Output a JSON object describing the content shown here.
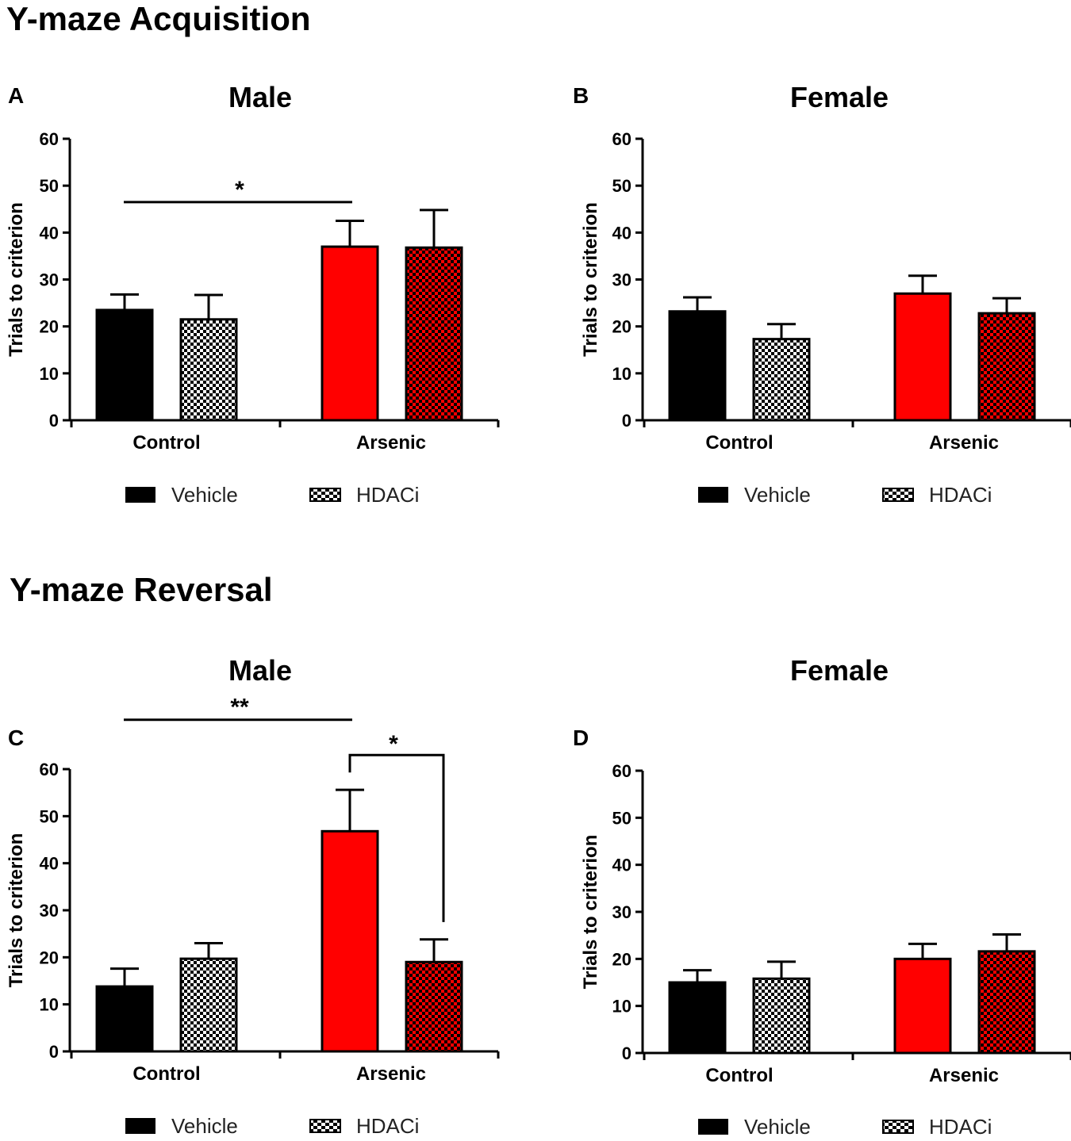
{
  "section_titles": [
    "Y-maze Acquisition",
    "Y-maze Reversal"
  ],
  "legend": {
    "vehicle": "Vehicle",
    "hdaci": "HDACi"
  },
  "colors": {
    "black": "#000000",
    "red": "#ff0000",
    "white": "#ffffff",
    "checker_dark_red": "#8b0000"
  },
  "chart_data": [
    {
      "type": "bar",
      "panel": "A",
      "title": "Male",
      "section": "Y-maze Acquisition",
      "ylabel": "Trials to criterion",
      "xlabel": "",
      "ylim": [
        0,
        60
      ],
      "yticks": [
        0,
        10,
        20,
        30,
        40,
        50,
        60
      ],
      "categories": [
        "Control",
        "Arsenic"
      ],
      "series": [
        {
          "name": "Vehicle",
          "values": [
            23.5,
            37.0
          ],
          "errors": [
            3.3,
            5.5
          ]
        },
        {
          "name": "HDACi",
          "values": [
            21.5,
            36.8
          ],
          "errors": [
            5.2,
            8.0
          ]
        }
      ],
      "annotations": [
        {
          "text": "*",
          "from": "Control-Vehicle",
          "to": "Arsenic-Vehicle",
          "y": 46.5
        }
      ]
    },
    {
      "type": "bar",
      "panel": "B",
      "title": "Female",
      "section": "Y-maze Acquisition",
      "ylabel": "Trials to criterion",
      "xlabel": "",
      "ylim": [
        0,
        60
      ],
      "yticks": [
        0,
        10,
        20,
        30,
        40,
        50,
        60
      ],
      "categories": [
        "Control",
        "Arsenic"
      ],
      "series": [
        {
          "name": "Vehicle",
          "values": [
            23.2,
            27.0
          ],
          "errors": [
            3.0,
            3.8
          ]
        },
        {
          "name": "HDACi",
          "values": [
            17.3,
            22.8
          ],
          "errors": [
            3.2,
            3.2
          ]
        }
      ],
      "annotations": []
    },
    {
      "type": "bar",
      "panel": "C",
      "title": "Male",
      "section": "Y-maze Reversal",
      "ylabel": "Trials to criterion",
      "xlabel": "",
      "ylim": [
        0,
        60
      ],
      "yticks": [
        0,
        10,
        20,
        30,
        40,
        50,
        60
      ],
      "categories": [
        "Control",
        "Arsenic"
      ],
      "series": [
        {
          "name": "Vehicle",
          "values": [
            13.8,
            46.8
          ],
          "errors": [
            3.8,
            8.8
          ]
        },
        {
          "name": "HDACi",
          "values": [
            19.7,
            19.0
          ],
          "errors": [
            3.3,
            4.8
          ]
        }
      ],
      "annotations": [
        {
          "text": "**",
          "from": "Control-Vehicle",
          "to": "Arsenic-Vehicle",
          "y": 70.5
        },
        {
          "text": "*",
          "from": "Arsenic-Vehicle",
          "to": "Arsenic-HDACi",
          "y": 63
        }
      ]
    },
    {
      "type": "bar",
      "panel": "D",
      "title": "Female",
      "section": "Y-maze Reversal",
      "ylabel": "Trials to criterion",
      "xlabel": "",
      "ylim": [
        0,
        60
      ],
      "yticks": [
        0,
        10,
        20,
        30,
        40,
        50,
        60
      ],
      "categories": [
        "Control",
        "Arsenic"
      ],
      "series": [
        {
          "name": "Vehicle",
          "values": [
            15.0,
            20.0
          ],
          "errors": [
            2.6,
            3.2
          ]
        },
        {
          "name": "HDACi",
          "values": [
            15.8,
            21.6
          ],
          "errors": [
            3.6,
            3.6
          ]
        }
      ],
      "annotations": []
    }
  ]
}
